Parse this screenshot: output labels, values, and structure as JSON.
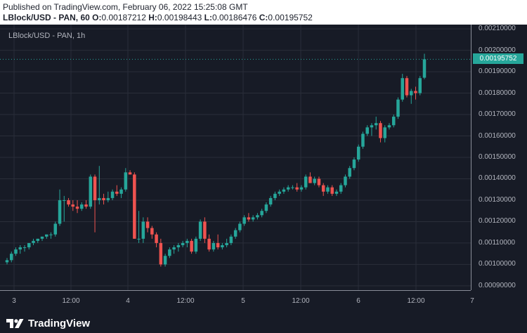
{
  "header": {
    "published": "Published on TradingView.com, February 06, 2022 15:25:08 GMT",
    "symbol": "LBlock/USD - PAN, 60",
    "ohlc": [
      {
        "label": "O:",
        "value": "0.00187212"
      },
      {
        "label": "H:",
        "value": "0.00198443"
      },
      {
        "label": "L:",
        "value": "0.00186476"
      },
      {
        "label": "C:",
        "value": "0.00195752"
      }
    ]
  },
  "legend": "LBlock/USD - PAN, 1h",
  "current_price": "0.00195752",
  "footer": {
    "brand": "TradingView"
  },
  "colors": {
    "up": "#26a69a",
    "down": "#ef5350",
    "background": "#171b26",
    "grid": "#2a2e39",
    "text": "#b2b5be"
  },
  "chart_data": {
    "type": "candlestick",
    "ylim": [
      0.00088,
      0.00212
    ],
    "y_ticks": [
      "0.00210000",
      "0.00200000",
      "0.00190000",
      "0.00180000",
      "0.00170000",
      "0.00160000",
      "0.00150000",
      "0.00140000",
      "0.00130000",
      "0.00120000",
      "0.00110000",
      "0.00100000",
      "0.00090000"
    ],
    "x_ticks": [
      "3",
      "12:00",
      "4",
      "12:00",
      "5",
      "12:00",
      "6",
      "12:00",
      "7"
    ],
    "candles": [
      [
        0.00101,
        0.00103,
        0.001,
        0.00102
      ],
      [
        0.00102,
        0.00106,
        0.00101,
        0.00105
      ],
      [
        0.00105,
        0.00108,
        0.00104,
        0.00107
      ],
      [
        0.00107,
        0.00109,
        0.00105,
        0.00108
      ],
      [
        0.00108,
        0.00109,
        0.00106,
        0.00108
      ],
      [
        0.00108,
        0.0011,
        0.00107,
        0.0011
      ],
      [
        0.0011,
        0.00112,
        0.00109,
        0.00111
      ],
      [
        0.00111,
        0.00112,
        0.0011,
        0.00112
      ],
      [
        0.00112,
        0.00113,
        0.00111,
        0.00113
      ],
      [
        0.00113,
        0.00114,
        0.00112,
        0.00114
      ],
      [
        0.00114,
        0.00115,
        0.00112,
        0.00114
      ],
      [
        0.00114,
        0.0012,
        0.00113,
        0.00119
      ],
      [
        0.00119,
        0.00135,
        0.00118,
        0.0013
      ],
      [
        0.0013,
        0.00132,
        0.0012,
        0.0013
      ],
      [
        0.0013,
        0.00131,
        0.00127,
        0.00128
      ],
      [
        0.00128,
        0.0013,
        0.00125,
        0.00127
      ],
      [
        0.00127,
        0.0013,
        0.00124,
        0.00126
      ],
      [
        0.00126,
        0.00129,
        0.00125,
        0.00128
      ],
      [
        0.00128,
        0.0013,
        0.00126,
        0.00127
      ],
      [
        0.00127,
        0.00142,
        0.00126,
        0.00141
      ],
      [
        0.00141,
        0.00142,
        0.00115,
        0.0013
      ],
      [
        0.0013,
        0.00146,
        0.00128,
        0.00131
      ],
      [
        0.00131,
        0.00133,
        0.00128,
        0.0013
      ],
      [
        0.0013,
        0.00134,
        0.00129,
        0.00131
      ],
      [
        0.00131,
        0.00135,
        0.0013,
        0.00134
      ],
      [
        0.00134,
        0.00137,
        0.00132,
        0.00133
      ],
      [
        0.00133,
        0.00136,
        0.00131,
        0.00135
      ],
      [
        0.00135,
        0.00145,
        0.00134,
        0.00143
      ],
      [
        0.00143,
        0.00144,
        0.00142,
        0.00142
      ],
      [
        0.00142,
        0.00143,
        0.00112,
        0.00112
      ],
      [
        0.00112,
        0.00125,
        0.0011,
        0.00112
      ],
      [
        0.00112,
        0.00122,
        0.0011,
        0.0012
      ],
      [
        0.0012,
        0.00122,
        0.00115,
        0.00117
      ],
      [
        0.00117,
        0.00118,
        0.00112,
        0.00114
      ],
      [
        0.00114,
        0.00115,
        0.00108,
        0.0011
      ],
      [
        0.0011,
        0.00112,
        0.00099,
        0.001
      ],
      [
        0.001,
        0.00105,
        0.00099,
        0.00104
      ],
      [
        0.00104,
        0.00108,
        0.00103,
        0.00107
      ],
      [
        0.00107,
        0.00109,
        0.00105,
        0.00108
      ],
      [
        0.00108,
        0.0011,
        0.00106,
        0.00109
      ],
      [
        0.00109,
        0.00111,
        0.00108,
        0.0011
      ],
      [
        0.0011,
        0.00112,
        0.00108,
        0.00111
      ],
      [
        0.00111,
        0.00112,
        0.00105,
        0.00106
      ],
      [
        0.00106,
        0.00113,
        0.00105,
        0.00112
      ],
      [
        0.00112,
        0.00121,
        0.00111,
        0.0012
      ],
      [
        0.0012,
        0.00122,
        0.0011,
        0.00112
      ],
      [
        0.00112,
        0.00114,
        0.00106,
        0.00107
      ],
      [
        0.00107,
        0.00111,
        0.00106,
        0.0011
      ],
      [
        0.0011,
        0.00114,
        0.00107,
        0.00108
      ],
      [
        0.00108,
        0.0011,
        0.00107,
        0.00109
      ],
      [
        0.00109,
        0.00112,
        0.00108,
        0.0011
      ],
      [
        0.0011,
        0.00114,
        0.00109,
        0.00113
      ],
      [
        0.00113,
        0.00117,
        0.00112,
        0.00116
      ],
      [
        0.00116,
        0.0012,
        0.00115,
        0.00119
      ],
      [
        0.00119,
        0.00123,
        0.00118,
        0.00122
      ],
      [
        0.00122,
        0.00124,
        0.0012,
        0.00121
      ],
      [
        0.00121,
        0.00123,
        0.0012,
        0.00122
      ],
      [
        0.00122,
        0.00124,
        0.00121,
        0.00123
      ],
      [
        0.00123,
        0.00126,
        0.00122,
        0.00125
      ],
      [
        0.00125,
        0.00129,
        0.00124,
        0.00128
      ],
      [
        0.00128,
        0.00132,
        0.00127,
        0.00131
      ],
      [
        0.00131,
        0.00134,
        0.0013,
        0.00133
      ],
      [
        0.00133,
        0.00135,
        0.00132,
        0.00134
      ],
      [
        0.00134,
        0.00136,
        0.00133,
        0.00135
      ],
      [
        0.00135,
        0.00137,
        0.00134,
        0.00136
      ],
      [
        0.00136,
        0.00137,
        0.00135,
        0.00136
      ],
      [
        0.00136,
        0.00138,
        0.00134,
        0.00135
      ],
      [
        0.00135,
        0.00137,
        0.00134,
        0.00136
      ],
      [
        0.00136,
        0.00142,
        0.00135,
        0.00141
      ],
      [
        0.00141,
        0.00143,
        0.00138,
        0.00138
      ],
      [
        0.00138,
        0.00141,
        0.00137,
        0.0014
      ],
      [
        0.0014,
        0.00141,
        0.00136,
        0.00137
      ],
      [
        0.00137,
        0.00138,
        0.00132,
        0.00134
      ],
      [
        0.00134,
        0.00137,
        0.00133,
        0.00136
      ],
      [
        0.00136,
        0.00137,
        0.00132,
        0.00133
      ],
      [
        0.00133,
        0.00135,
        0.00132,
        0.00134
      ],
      [
        0.00134,
        0.00138,
        0.00133,
        0.00137
      ],
      [
        0.00137,
        0.00142,
        0.00136,
        0.00141
      ],
      [
        0.00141,
        0.00146,
        0.0014,
        0.00145
      ],
      [
        0.00145,
        0.0015,
        0.00144,
        0.00149
      ],
      [
        0.00149,
        0.00156,
        0.00148,
        0.00155
      ],
      [
        0.00155,
        0.00162,
        0.00154,
        0.00161
      ],
      [
        0.00161,
        0.00165,
        0.0016,
        0.00164
      ],
      [
        0.00164,
        0.00166,
        0.0016,
        0.00165
      ],
      [
        0.00165,
        0.00169,
        0.00163,
        0.00166
      ],
      [
        0.00166,
        0.00167,
        0.00157,
        0.00159
      ],
      [
        0.00159,
        0.00165,
        0.00157,
        0.00164
      ],
      [
        0.00164,
        0.00166,
        0.00163,
        0.00165
      ],
      [
        0.00165,
        0.0017,
        0.00164,
        0.00169
      ],
      [
        0.00169,
        0.00178,
        0.00168,
        0.00177
      ],
      [
        0.00177,
        0.00189,
        0.00176,
        0.00187
      ],
      [
        0.00187,
        0.00188,
        0.00178,
        0.00179
      ],
      [
        0.00179,
        0.00182,
        0.00175,
        0.00181
      ],
      [
        0.00181,
        0.00183,
        0.00177,
        0.0018
      ],
      [
        0.0018,
        0.00188,
        0.00179,
        0.00187
      ],
      [
        0.001872,
        0.001984,
        0.001865,
        0.001958
      ]
    ]
  }
}
